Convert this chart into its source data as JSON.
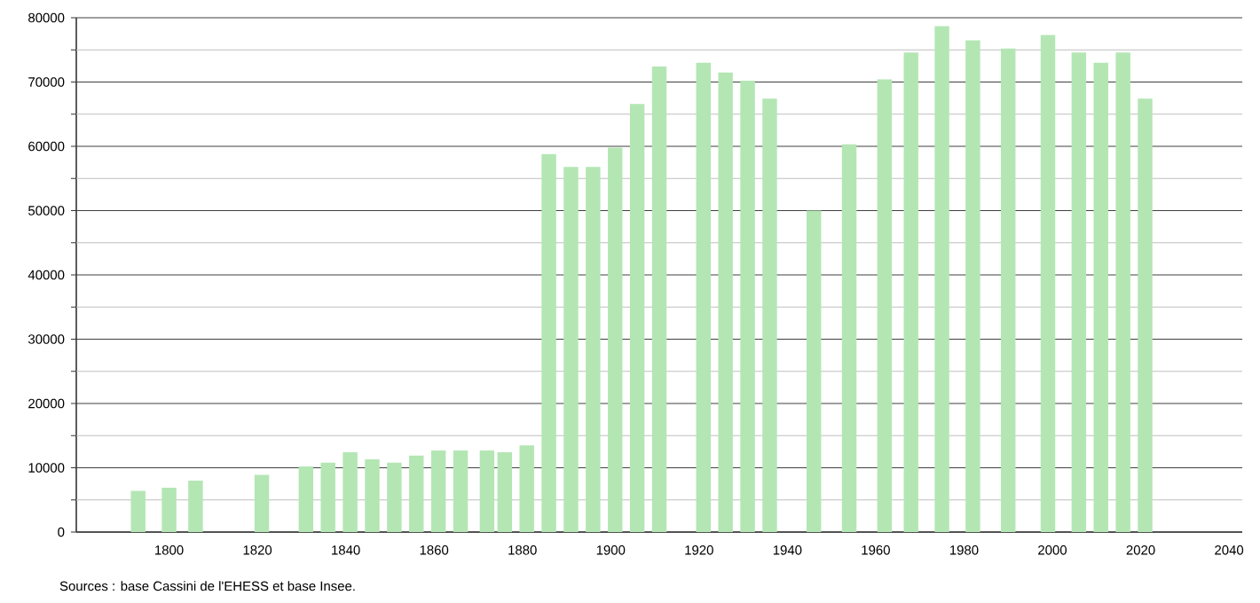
{
  "chart_data": {
    "type": "bar",
    "x": [
      1793,
      1800,
      1806,
      1821,
      1831,
      1836,
      1841,
      1846,
      1851,
      1856,
      1861,
      1866,
      1872,
      1876,
      1881,
      1886,
      1891,
      1896,
      1901,
      1906,
      1911,
      1921,
      1926,
      1931,
      1936,
      1946,
      1954,
      1962,
      1968,
      1975,
      1982,
      1990,
      1999,
      2006,
      2011,
      2016,
      2021
    ],
    "values": [
      6400,
      6900,
      8000,
      8900,
      10200,
      10800,
      12400,
      11300,
      10800,
      11900,
      12700,
      12700,
      12700,
      12400,
      13500,
      58800,
      56800,
      56800,
      59800,
      66600,
      72400,
      73000,
      71500,
      70200,
      67400,
      50000,
      60300,
      70400,
      74600,
      78700,
      76500,
      75200,
      77300,
      74600,
      73000,
      74600,
      67400
    ],
    "color": "#b3e6b3",
    "xlim": [
      1779,
      2043
    ],
    "xticks": [
      1800,
      1820,
      1840,
      1860,
      1880,
      1900,
      1920,
      1940,
      1960,
      1980,
      2000,
      2020,
      2040
    ],
    "ylim": [
      0,
      80000
    ],
    "yticks": [
      0,
      {
        "value": 5000,
        "label": null
      },
      10000,
      {
        "value": 15000,
        "label": null
      },
      20000,
      {
        "value": 25000,
        "label": null
      },
      30000,
      {
        "value": 35000,
        "label": null
      },
      40000,
      {
        "value": 45000,
        "label": null
      },
      50000,
      {
        "value": 55000,
        "label": null
      },
      60000,
      {
        "value": 65000,
        "label": null
      },
      70000,
      {
        "value": 75000,
        "label": null
      },
      80000
    ],
    "grid": "y",
    "annotations": [
      "Sources : base Cassini de l'EHESS et base Insee."
    ]
  }
}
